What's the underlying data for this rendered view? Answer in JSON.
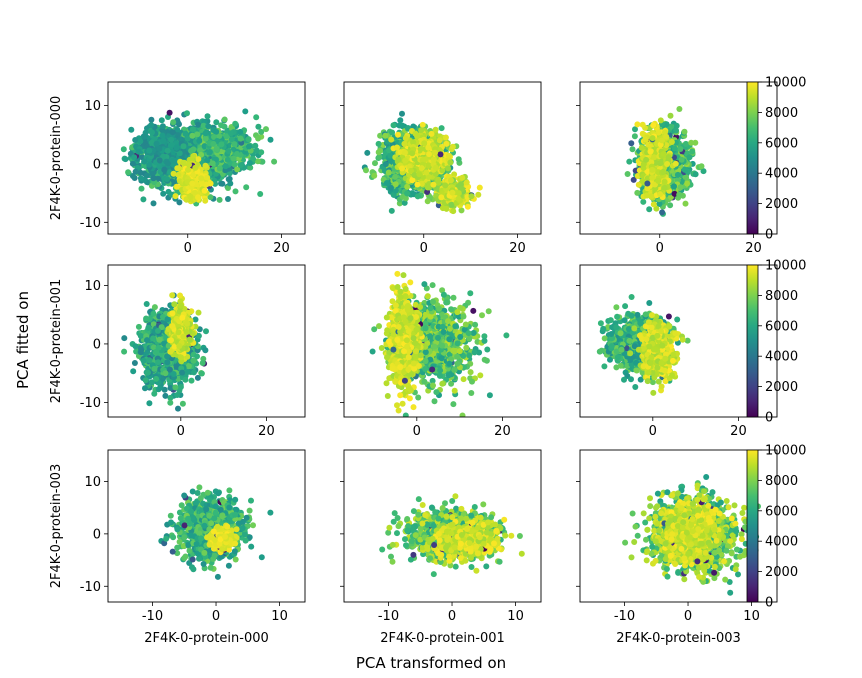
{
  "figure": {
    "supxlabel": "PCA transformed on",
    "supylabel": "PCA fitted on"
  },
  "chart_data": {
    "type": "scatter",
    "layout": "3x3 grid, rows share y axis, columns share x axis",
    "colormap": "viridis",
    "colorbar": {
      "min": 0,
      "max": 10000,
      "ticks": [
        "0",
        "2000",
        "4000",
        "6000",
        "8000",
        "10000"
      ]
    },
    "row_labels": [
      "2F4K-0-protein-000",
      "2F4K-0-protein-001",
      "2F4K-0-protein-003"
    ],
    "col_labels": [
      "2F4K-0-protein-000",
      "2F4K-0-protein-001",
      "2F4K-0-protein-003"
    ],
    "rows": [
      {
        "ylim": [
          -12,
          14
        ],
        "yticks": [
          -10,
          0,
          10
        ],
        "xlim": [
          -17,
          25
        ],
        "xticks": [
          0,
          20
        ]
      },
      {
        "ylim": [
          -12.5,
          13.5
        ],
        "yticks": [
          -10,
          0,
          10
        ],
        "xlim": [
          -17,
          29
        ],
        "xticks": [
          0,
          20
        ]
      },
      {
        "ylim": [
          -13,
          16
        ],
        "yticks": [
          -10,
          0,
          10
        ],
        "xlim": [
          -17,
          14
        ],
        "xticks": [
          -10,
          0,
          10
        ]
      }
    ],
    "panels": [
      {
        "row": 0,
        "col": 0,
        "clusters": [
          {
            "cx": 0,
            "cy": 1,
            "sx": 6.5,
            "sy": 3.5,
            "n": 1300,
            "c0": 0.45,
            "c1": 0.75
          },
          {
            "cx": -5,
            "cy": 2,
            "sx": 3.5,
            "sy": 2.5,
            "n": 350,
            "c0": 0.45,
            "c1": 0.6
          },
          {
            "cx": 8,
            "cy": 3,
            "sx": 4.5,
            "sy": 2.5,
            "n": 350,
            "c0": 0.55,
            "c1": 0.8
          },
          {
            "cx": 1,
            "cy": -3,
            "sx": 1.8,
            "sy": 2,
            "n": 350,
            "c0": 0.9,
            "c1": 1.0
          }
        ]
      },
      {
        "row": 0,
        "col": 1,
        "clusters": [
          {
            "cx": -2,
            "cy": 0,
            "sx": 4.5,
            "sy": 3.5,
            "n": 1100,
            "c0": 0.5,
            "c1": 0.85
          },
          {
            "cx": 0,
            "cy": 1,
            "sx": 3,
            "sy": 2.5,
            "n": 600,
            "c0": 0.85,
            "c1": 1.0
          },
          {
            "cx": 6,
            "cy": -5,
            "sx": 2.5,
            "sy": 1.5,
            "n": 300,
            "c0": 0.8,
            "c1": 1.0
          }
        ]
      },
      {
        "row": 0,
        "col": 2,
        "clusters": [
          {
            "cx": 1,
            "cy": 0,
            "sx": 3.5,
            "sy": 3.8,
            "n": 900,
            "c0": 0.55,
            "c1": 0.85
          },
          {
            "cx": -1,
            "cy": 0,
            "sx": 1.8,
            "sy": 3.5,
            "n": 500,
            "c0": 0.85,
            "c1": 1.0
          }
        ]
      },
      {
        "row": 1,
        "col": 0,
        "clusters": [
          {
            "cx": -3,
            "cy": -1,
            "sx": 4,
            "sy": 4,
            "n": 1000,
            "c0": 0.45,
            "c1": 0.75
          },
          {
            "cx": 0,
            "cy": 2,
            "sx": 1.5,
            "sy": 2.5,
            "n": 400,
            "c0": 0.85,
            "c1": 1.0
          }
        ]
      },
      {
        "row": 1,
        "col": 1,
        "clusters": [
          {
            "cx": 4,
            "cy": 0,
            "sx": 6,
            "sy": 4.5,
            "n": 1000,
            "c0": 0.55,
            "c1": 0.9
          },
          {
            "cx": -3,
            "cy": 0,
            "sx": 2,
            "sy": 5,
            "n": 800,
            "c0": 0.85,
            "c1": 1.0
          }
        ]
      },
      {
        "row": 1,
        "col": 2,
        "clusters": [
          {
            "cx": -3,
            "cy": 0,
            "sx": 4.5,
            "sy": 3,
            "n": 800,
            "c0": 0.5,
            "c1": 0.8
          },
          {
            "cx": 1,
            "cy": -1,
            "sx": 2.5,
            "sy": 3,
            "n": 500,
            "c0": 0.85,
            "c1": 1.0
          }
        ]
      },
      {
        "row": 2,
        "col": 0,
        "clusters": [
          {
            "cx": -1,
            "cy": 1,
            "sx": 3.2,
            "sy": 3.5,
            "n": 1100,
            "c0": 0.5,
            "c1": 0.8
          },
          {
            "cx": 1,
            "cy": -1,
            "sx": 1.2,
            "sy": 1.2,
            "n": 300,
            "c0": 0.92,
            "c1": 1.0
          }
        ]
      },
      {
        "row": 2,
        "col": 1,
        "clusters": [
          {
            "cx": 0,
            "cy": 0,
            "sx": 4.5,
            "sy": 3,
            "n": 1100,
            "c0": 0.6,
            "c1": 0.95
          },
          {
            "cx": 2,
            "cy": -1,
            "sx": 3,
            "sy": 2,
            "n": 500,
            "c0": 0.85,
            "c1": 1.0
          }
        ]
      },
      {
        "row": 2,
        "col": 2,
        "clusters": [
          {
            "cx": 1,
            "cy": 0,
            "sx": 4.5,
            "sy": 4.5,
            "n": 1200,
            "c0": 0.55,
            "c1": 0.95
          },
          {
            "cx": 0,
            "cy": 0,
            "sx": 3,
            "sy": 4,
            "n": 600,
            "c0": 0.85,
            "c1": 1.0
          }
        ]
      }
    ]
  }
}
